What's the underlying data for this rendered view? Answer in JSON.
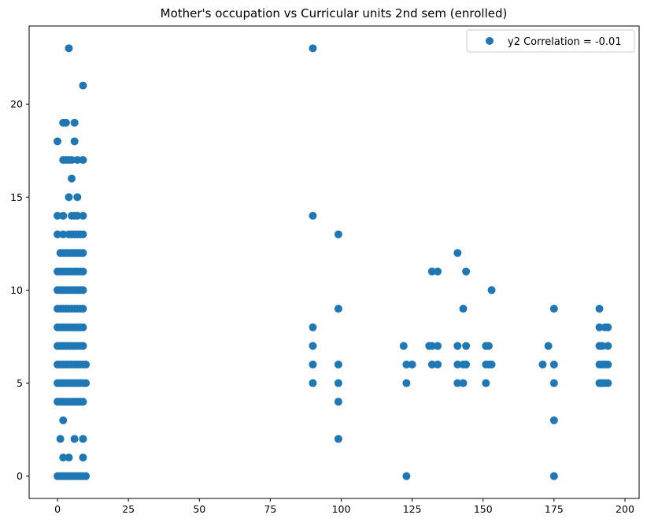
{
  "chart_data": {
    "type": "scatter",
    "title": "Mother's occupation vs Curricular units 2nd sem (enrolled)",
    "xlabel": "",
    "ylabel": "",
    "xlim": [
      -10,
      205
    ],
    "ylim": [
      -1.2,
      24.2
    ],
    "x_ticks": [
      0,
      25,
      50,
      75,
      100,
      125,
      150,
      175,
      200
    ],
    "y_ticks": [
      0,
      5,
      10,
      15,
      20
    ],
    "grid": false,
    "legend_position": "top-right",
    "marker_color": "#1f77b4",
    "series": [
      {
        "name": "y2 Correlation = -0.01",
        "points": [
          [
            0,
            0
          ],
          [
            1,
            0
          ],
          [
            2,
            0
          ],
          [
            3,
            0
          ],
          [
            4,
            0
          ],
          [
            5,
            0
          ],
          [
            6,
            0
          ],
          [
            7,
            0
          ],
          [
            8,
            0
          ],
          [
            9,
            0
          ],
          [
            10,
            0
          ],
          [
            2,
            1
          ],
          [
            4,
            1
          ],
          [
            9,
            1
          ],
          [
            1,
            2
          ],
          [
            6,
            2
          ],
          [
            9,
            2
          ],
          [
            2,
            3
          ],
          [
            0,
            4
          ],
          [
            1,
            4
          ],
          [
            2,
            4
          ],
          [
            3,
            4
          ],
          [
            4,
            4
          ],
          [
            5,
            4
          ],
          [
            6,
            4
          ],
          [
            7,
            4
          ],
          [
            8,
            4
          ],
          [
            9,
            4
          ],
          [
            0,
            5
          ],
          [
            1,
            5
          ],
          [
            2,
            5
          ],
          [
            3,
            5
          ],
          [
            4,
            5
          ],
          [
            5,
            5
          ],
          [
            6,
            5
          ],
          [
            7,
            5
          ],
          [
            8,
            5
          ],
          [
            9,
            5
          ],
          [
            10,
            5
          ],
          [
            0,
            6
          ],
          [
            1,
            6
          ],
          [
            2,
            6
          ],
          [
            3,
            6
          ],
          [
            4,
            6
          ],
          [
            5,
            6
          ],
          [
            6,
            6
          ],
          [
            7,
            6
          ],
          [
            8,
            6
          ],
          [
            9,
            6
          ],
          [
            10,
            6
          ],
          [
            0,
            7
          ],
          [
            1,
            7
          ],
          [
            2,
            7
          ],
          [
            3,
            7
          ],
          [
            4,
            7
          ],
          [
            5,
            7
          ],
          [
            6,
            7
          ],
          [
            7,
            7
          ],
          [
            8,
            7
          ],
          [
            9,
            7
          ],
          [
            0,
            8
          ],
          [
            1,
            8
          ],
          [
            2,
            8
          ],
          [
            3,
            8
          ],
          [
            4,
            8
          ],
          [
            5,
            8
          ],
          [
            6,
            8
          ],
          [
            7,
            8
          ],
          [
            8,
            8
          ],
          [
            9,
            8
          ],
          [
            0,
            9
          ],
          [
            1,
            9
          ],
          [
            2,
            9
          ],
          [
            3,
            9
          ],
          [
            4,
            9
          ],
          [
            5,
            9
          ],
          [
            6,
            9
          ],
          [
            7,
            9
          ],
          [
            8,
            9
          ],
          [
            9,
            9
          ],
          [
            0,
            10
          ],
          [
            1,
            10
          ],
          [
            2,
            10
          ],
          [
            3,
            10
          ],
          [
            4,
            10
          ],
          [
            5,
            10
          ],
          [
            6,
            10
          ],
          [
            7,
            10
          ],
          [
            8,
            10
          ],
          [
            9,
            10
          ],
          [
            0,
            11
          ],
          [
            1,
            11
          ],
          [
            2,
            11
          ],
          [
            3,
            11
          ],
          [
            4,
            11
          ],
          [
            5,
            11
          ],
          [
            6,
            11
          ],
          [
            7,
            11
          ],
          [
            8,
            11
          ],
          [
            9,
            11
          ],
          [
            1,
            12
          ],
          [
            2,
            12
          ],
          [
            3,
            12
          ],
          [
            4,
            12
          ],
          [
            5,
            12
          ],
          [
            6,
            12
          ],
          [
            7,
            12
          ],
          [
            8,
            12
          ],
          [
            9,
            12
          ],
          [
            0,
            13
          ],
          [
            2,
            13
          ],
          [
            4,
            13
          ],
          [
            5,
            13
          ],
          [
            6,
            13
          ],
          [
            7,
            13
          ],
          [
            8,
            13
          ],
          [
            9,
            13
          ],
          [
            0,
            14
          ],
          [
            2,
            14
          ],
          [
            5,
            14
          ],
          [
            6,
            14
          ],
          [
            7,
            14
          ],
          [
            9,
            14
          ],
          [
            4,
            15
          ],
          [
            7,
            15
          ],
          [
            5,
            16
          ],
          [
            2,
            17
          ],
          [
            3,
            17
          ],
          [
            4,
            17
          ],
          [
            5,
            17
          ],
          [
            7,
            17
          ],
          [
            9,
            17
          ],
          [
            0,
            18
          ],
          [
            6,
            18
          ],
          [
            2,
            19
          ],
          [
            3,
            19
          ],
          [
            6,
            19
          ],
          [
            9,
            21
          ],
          [
            4,
            23
          ],
          [
            90,
            5
          ],
          [
            90,
            6
          ],
          [
            90,
            7
          ],
          [
            90,
            8
          ],
          [
            90,
            14
          ],
          [
            90,
            23
          ],
          [
            99,
            2
          ],
          [
            99,
            4
          ],
          [
            99,
            5
          ],
          [
            99,
            6
          ],
          [
            99,
            9
          ],
          [
            99,
            13
          ],
          [
            122,
            7
          ],
          [
            123,
            0
          ],
          [
            123,
            5
          ],
          [
            123,
            6
          ],
          [
            125,
            6
          ],
          [
            131,
            7
          ],
          [
            132,
            6
          ],
          [
            132,
            7
          ],
          [
            132,
            11
          ],
          [
            134,
            6
          ],
          [
            134,
            7
          ],
          [
            134,
            11
          ],
          [
            141,
            5
          ],
          [
            141,
            6
          ],
          [
            141,
            7
          ],
          [
            141,
            12
          ],
          [
            143,
            5
          ],
          [
            143,
            6
          ],
          [
            143,
            9
          ],
          [
            144,
            6
          ],
          [
            144,
            7
          ],
          [
            144,
            11
          ],
          [
            151,
            5
          ],
          [
            151,
            6
          ],
          [
            151,
            7
          ],
          [
            152,
            6
          ],
          [
            152,
            7
          ],
          [
            153,
            6
          ],
          [
            153,
            10
          ],
          [
            171,
            6
          ],
          [
            173,
            7
          ],
          [
            175,
            0
          ],
          [
            175,
            3
          ],
          [
            175,
            5
          ],
          [
            175,
            6
          ],
          [
            175,
            9
          ],
          [
            191,
            5
          ],
          [
            191,
            6
          ],
          [
            191,
            7
          ],
          [
            191,
            8
          ],
          [
            191,
            9
          ],
          [
            192,
            5
          ],
          [
            192,
            6
          ],
          [
            192,
            7
          ],
          [
            193,
            5
          ],
          [
            193,
            6
          ],
          [
            193,
            8
          ],
          [
            194,
            5
          ],
          [
            194,
            6
          ],
          [
            194,
            7
          ],
          [
            194,
            8
          ]
        ]
      }
    ]
  }
}
